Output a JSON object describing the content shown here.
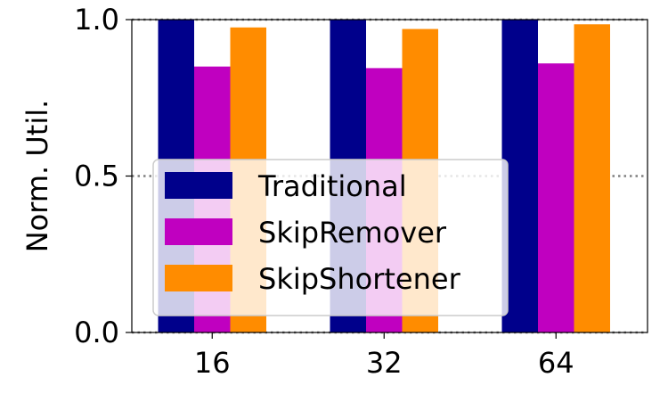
{
  "chart_data": {
    "type": "bar",
    "categories": [
      "16",
      "32",
      "64"
    ],
    "series": [
      {
        "name": "Traditional",
        "values": [
          1.0,
          1.0,
          1.0
        ],
        "color": "#00008b"
      },
      {
        "name": "SkipRemover",
        "values": [
          0.85,
          0.845,
          0.86
        ],
        "color": "#c000c0"
      },
      {
        "name": "SkipShortener",
        "values": [
          0.975,
          0.97,
          0.985
        ],
        "color": "#ff8c00"
      }
    ],
    "title": "",
    "xlabel": "",
    "ylabel": "Norm. Util.",
    "ylim": [
      0,
      1.0
    ],
    "yticks": [
      0.0,
      0.5,
      1.0
    ],
    "ytick_labels": [
      "0.0",
      "0.5",
      "1.0"
    ],
    "grid": {
      "axis": "y",
      "style": "dotted",
      "color": "#808080"
    },
    "legend": "lower-left"
  }
}
